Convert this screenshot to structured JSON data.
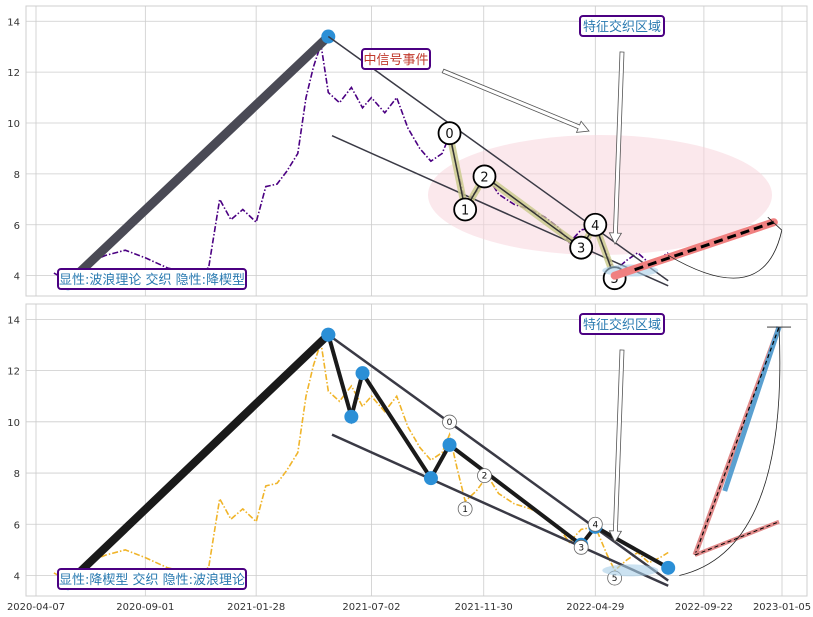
{
  "chart_data": [
    {
      "type": "line",
      "panel": "top",
      "title": "",
      "xlabel": "",
      "ylabel": "",
      "ylim": [
        3.2,
        14.6
      ],
      "yticks": [
        "4",
        "6",
        "8",
        "10",
        "12",
        "14"
      ],
      "grid": true,
      "series": [
        {
          "color": "#4b0082",
          "style": "dash-dot",
          "values": [
            [
              "2020-05-01",
              4.1
            ],
            [
              "2020-05-20",
              3.8
            ],
            [
              "2020-06-15",
              4.5
            ],
            [
              "2020-07-10",
              4.8
            ],
            [
              "2020-08-05",
              5.0
            ],
            [
              "2020-09-01",
              4.7
            ],
            [
              "2020-10-01",
              4.3
            ],
            [
              "2020-11-01",
              4.1
            ],
            [
              "2020-11-25",
              4.3
            ],
            [
              "2020-12-10",
              7.0
            ],
            [
              "2020-12-25",
              6.2
            ],
            [
              "2021-01-10",
              6.6
            ],
            [
              "2021-01-28",
              6.1
            ],
            [
              "2021-02-10",
              7.5
            ],
            [
              "2021-02-25",
              7.6
            ],
            [
              "2021-03-10",
              8.1
            ],
            [
              "2021-03-25",
              8.8
            ],
            [
              "2021-04-05",
              11.0
            ],
            [
              "2021-04-15",
              12.2
            ],
            [
              "2021-04-25",
              13.1
            ],
            [
              "2021-05-05",
              11.2
            ],
            [
              "2021-05-20",
              10.8
            ],
            [
              "2021-06-05",
              11.4
            ],
            [
              "2021-06-20",
              10.6
            ],
            [
              "2021-07-02",
              11.0
            ],
            [
              "2021-07-20",
              10.4
            ],
            [
              "2021-08-05",
              11.0
            ],
            [
              "2021-08-20",
              9.8
            ],
            [
              "2021-09-05",
              9.0
            ],
            [
              "2021-09-20",
              8.5
            ],
            [
              "2021-10-05",
              8.8
            ],
            [
              "2021-10-15",
              9.5
            ],
            [
              "2021-10-25",
              8.2
            ],
            [
              "2021-11-05",
              6.9
            ],
            [
              "2021-11-20",
              7.3
            ],
            [
              "2021-12-05",
              7.9
            ],
            [
              "2021-12-20",
              7.2
            ],
            [
              "2022-01-10",
              6.8
            ],
            [
              "2022-02-01",
              6.6
            ],
            [
              "2022-02-20",
              6.3
            ],
            [
              "2022-03-10",
              5.9
            ],
            [
              "2022-03-25",
              5.3
            ],
            [
              "2022-04-10",
              5.8
            ],
            [
              "2022-04-29",
              5.9
            ],
            [
              "2022-05-15",
              4.8
            ],
            [
              "2022-05-25",
              4.2
            ],
            [
              "2022-06-10",
              4.6
            ],
            [
              "2022-06-25",
              4.9
            ],
            [
              "2022-07-10",
              4.5
            ],
            [
              "2022-07-25",
              4.7
            ],
            [
              "2022-08-05",
              4.9
            ]
          ]
        }
      ],
      "annotations": [
        {
          "label": "显性:波浪理论 交织 隐性:降楔型",
          "kind": "legend-box"
        },
        {
          "label": "中信号事件",
          "kind": "callout"
        },
        {
          "label": "特征交织区域",
          "kind": "callout"
        },
        {
          "label": "0"
        },
        {
          "label": "1"
        },
        {
          "label": "2"
        },
        {
          "label": "3"
        },
        {
          "label": "4"
        },
        {
          "label": "5"
        }
      ]
    },
    {
      "type": "line",
      "panel": "bottom",
      "title": "",
      "xlabel": "",
      "ylabel": "",
      "ylim": [
        3.2,
        14.6
      ],
      "yticks": [
        "4",
        "6",
        "8",
        "10",
        "12",
        "14"
      ],
      "xticks": [
        "2020-04-07",
        "2020-09-01",
        "2021-01-28",
        "2021-07-02",
        "2021-11-30",
        "2022-04-29",
        "2022-09-22",
        "2023-01-05"
      ],
      "grid": true,
      "series": [
        {
          "color": "#f0b429",
          "style": "dash-dot",
          "values": [
            [
              "2020-05-01",
              4.1
            ],
            [
              "2020-05-20",
              3.8
            ],
            [
              "2020-06-15",
              4.5
            ],
            [
              "2020-07-10",
              4.8
            ],
            [
              "2020-08-05",
              5.0
            ],
            [
              "2020-09-01",
              4.7
            ],
            [
              "2020-10-01",
              4.3
            ],
            [
              "2020-11-01",
              4.1
            ],
            [
              "2020-11-25",
              4.3
            ],
            [
              "2020-12-10",
              7.0
            ],
            [
              "2020-12-25",
              6.2
            ],
            [
              "2021-01-10",
              6.6
            ],
            [
              "2021-01-28",
              6.1
            ],
            [
              "2021-02-10",
              7.5
            ],
            [
              "2021-02-25",
              7.6
            ],
            [
              "2021-03-10",
              8.1
            ],
            [
              "2021-03-25",
              8.8
            ],
            [
              "2021-04-05",
              11.0
            ],
            [
              "2021-04-15",
              12.2
            ],
            [
              "2021-04-25",
              13.1
            ],
            [
              "2021-05-05",
              11.2
            ],
            [
              "2021-05-20",
              10.8
            ],
            [
              "2021-06-05",
              11.4
            ],
            [
              "2021-06-20",
              10.6
            ],
            [
              "2021-07-02",
              11.0
            ],
            [
              "2021-07-20",
              10.4
            ],
            [
              "2021-08-05",
              11.0
            ],
            [
              "2021-08-20",
              9.8
            ],
            [
              "2021-09-05",
              9.0
            ],
            [
              "2021-09-20",
              8.5
            ],
            [
              "2021-10-05",
              8.8
            ],
            [
              "2021-10-15",
              9.5
            ],
            [
              "2021-10-25",
              8.2
            ],
            [
              "2021-11-05",
              6.9
            ],
            [
              "2021-11-20",
              7.3
            ],
            [
              "2021-12-05",
              7.9
            ],
            [
              "2021-12-20",
              7.2
            ],
            [
              "2022-01-10",
              6.8
            ],
            [
              "2022-02-01",
              6.6
            ],
            [
              "2022-02-20",
              6.3
            ],
            [
              "2022-03-10",
              5.9
            ],
            [
              "2022-03-25",
              5.3
            ],
            [
              "2022-04-10",
              5.8
            ],
            [
              "2022-04-29",
              5.9
            ],
            [
              "2022-05-15",
              4.8
            ],
            [
              "2022-05-25",
              4.2
            ],
            [
              "2022-06-10",
              4.6
            ],
            [
              "2022-06-25",
              4.9
            ],
            [
              "2022-07-10",
              4.5
            ],
            [
              "2022-07-25",
              4.7
            ],
            [
              "2022-08-05",
              4.9
            ]
          ]
        }
      ],
      "annotations": [
        {
          "label": "显性:降楔型 交织 隐性:波浪理论",
          "kind": "legend-box"
        },
        {
          "label": "特征交织区域",
          "kind": "callout"
        },
        {
          "label": "0"
        },
        {
          "label": "1"
        },
        {
          "label": "2"
        },
        {
          "label": "3"
        },
        {
          "label": "4"
        },
        {
          "label": "5"
        }
      ]
    }
  ],
  "colors": {
    "top_series": "#4b0082",
    "bottom_series": "#f0b429",
    "marker": "#2b8fd6",
    "box_border": "#4b0082",
    "box_text": "#2a7ab0",
    "callout_red_text": "#c0392b",
    "grid": "#cccccc"
  }
}
